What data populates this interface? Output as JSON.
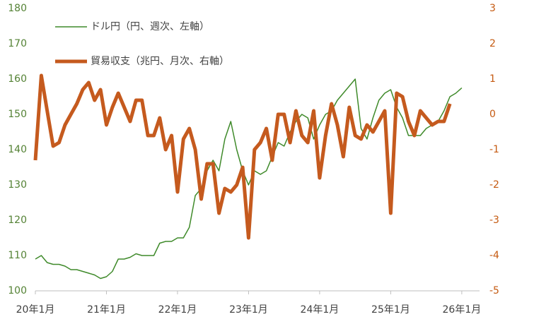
{
  "chart_data": {
    "type": "line",
    "legend": "upper left",
    "xlim": [
      0,
      75
    ],
    "xticks": [
      {
        "value": 0,
        "label": "20年1月"
      },
      {
        "value": 12,
        "label": "21年1月"
      },
      {
        "value": 24,
        "label": "22年1月"
      },
      {
        "value": 36,
        "label": "23年1月"
      },
      {
        "value": 48,
        "label": "24年1月"
      },
      {
        "value": 60,
        "label": "25年1月"
      },
      {
        "value": 72,
        "label": "26年1月"
      }
    ],
    "ylim": [
      100,
      180
    ],
    "yticks": [
      100,
      110,
      120,
      130,
      140,
      150,
      160,
      170,
      180
    ],
    "y2lim": [
      -5,
      3
    ],
    "y2ticks": [
      -5,
      -4,
      -3,
      -2,
      -1,
      0,
      1,
      2,
      3
    ],
    "y_color": "#548235",
    "y2_color": "#c55a11",
    "series": [
      {
        "name": "ドル円（円、週次、左軸）",
        "color": "#3f8a2a",
        "width": 1.5,
        "x": [
          0,
          1,
          2,
          3,
          4,
          5,
          6,
          7,
          8,
          9,
          10,
          11,
          12,
          13,
          14,
          15,
          16,
          17,
          18,
          19,
          20,
          21,
          22,
          23,
          24,
          25,
          26,
          27,
          28,
          29,
          30,
          31,
          32,
          33,
          34,
          35,
          36,
          37,
          38,
          39,
          40,
          41,
          42,
          43,
          44,
          45,
          46,
          47,
          48,
          49,
          50,
          51,
          52,
          53,
          54,
          55,
          56,
          57,
          58,
          59,
          60,
          61,
          62,
          63,
          64,
          65,
          66,
          67,
          68,
          69,
          70,
          71,
          72
        ],
        "values": [
          109,
          110,
          108,
          107.5,
          107.5,
          107,
          106,
          106,
          105.5,
          105,
          104.5,
          103.5,
          104,
          105.5,
          109,
          109,
          109.5,
          110.5,
          110,
          110,
          110,
          113.5,
          114,
          114,
          115,
          115,
          118,
          127,
          129,
          134,
          137,
          134,
          143,
          148,
          140,
          134,
          130,
          134,
          133,
          134,
          138,
          142,
          141,
          145,
          148,
          150,
          149,
          143,
          147,
          150,
          151,
          154,
          156,
          158,
          160,
          146,
          143,
          149,
          154,
          156,
          157,
          152,
          149,
          144,
          144,
          144,
          146,
          147,
          148,
          151,
          155,
          156,
          157.5
        ]
      },
      {
        "name": "貿易収支（兆円、月次、右軸）",
        "color": "#c55a1e",
        "width": 5,
        "axis": "y2",
        "x": [
          0,
          1,
          2,
          3,
          4,
          5,
          6,
          7,
          8,
          9,
          10,
          11,
          12,
          13,
          14,
          15,
          16,
          17,
          18,
          19,
          20,
          21,
          22,
          23,
          24,
          25,
          26,
          27,
          28,
          29,
          30,
          31,
          32,
          33,
          34,
          35,
          36,
          37,
          38,
          39,
          40,
          41,
          42,
          43,
          44,
          45,
          46,
          47,
          48,
          49,
          50,
          51,
          52,
          53,
          54,
          55,
          56,
          57,
          58,
          59,
          60,
          61,
          62,
          63,
          64,
          65,
          66,
          67,
          68,
          69,
          70
        ],
        "values": [
          -1.3,
          1.1,
          0.1,
          -0.9,
          -0.8,
          -0.3,
          0,
          0.3,
          0.7,
          0.9,
          0.4,
          0.7,
          -0.3,
          0.2,
          0.6,
          0.2,
          -0.2,
          0.4,
          0.4,
          -0.6,
          -0.6,
          -0.1,
          -1,
          -0.6,
          -2.2,
          -0.7,
          -0.4,
          -1,
          -2.4,
          -1.4,
          -1.4,
          -2.8,
          -2.1,
          -2.2,
          -2,
          -1.5,
          -3.5,
          -1,
          -0.8,
          -0.4,
          -1.3,
          0,
          0,
          -0.8,
          0.1,
          -0.6,
          -0.8,
          0.1,
          -1.8,
          -0.6,
          0.3,
          -0.3,
          -1.2,
          0.2,
          -0.6,
          -0.7,
          -0.3,
          -0.5,
          -0.2,
          0.1,
          -2.8,
          0.6,
          0.5,
          -0.2,
          -0.6,
          0.1,
          -0.1,
          -0.3,
          -0.2,
          -0.2,
          0.3
        ]
      }
    ]
  }
}
